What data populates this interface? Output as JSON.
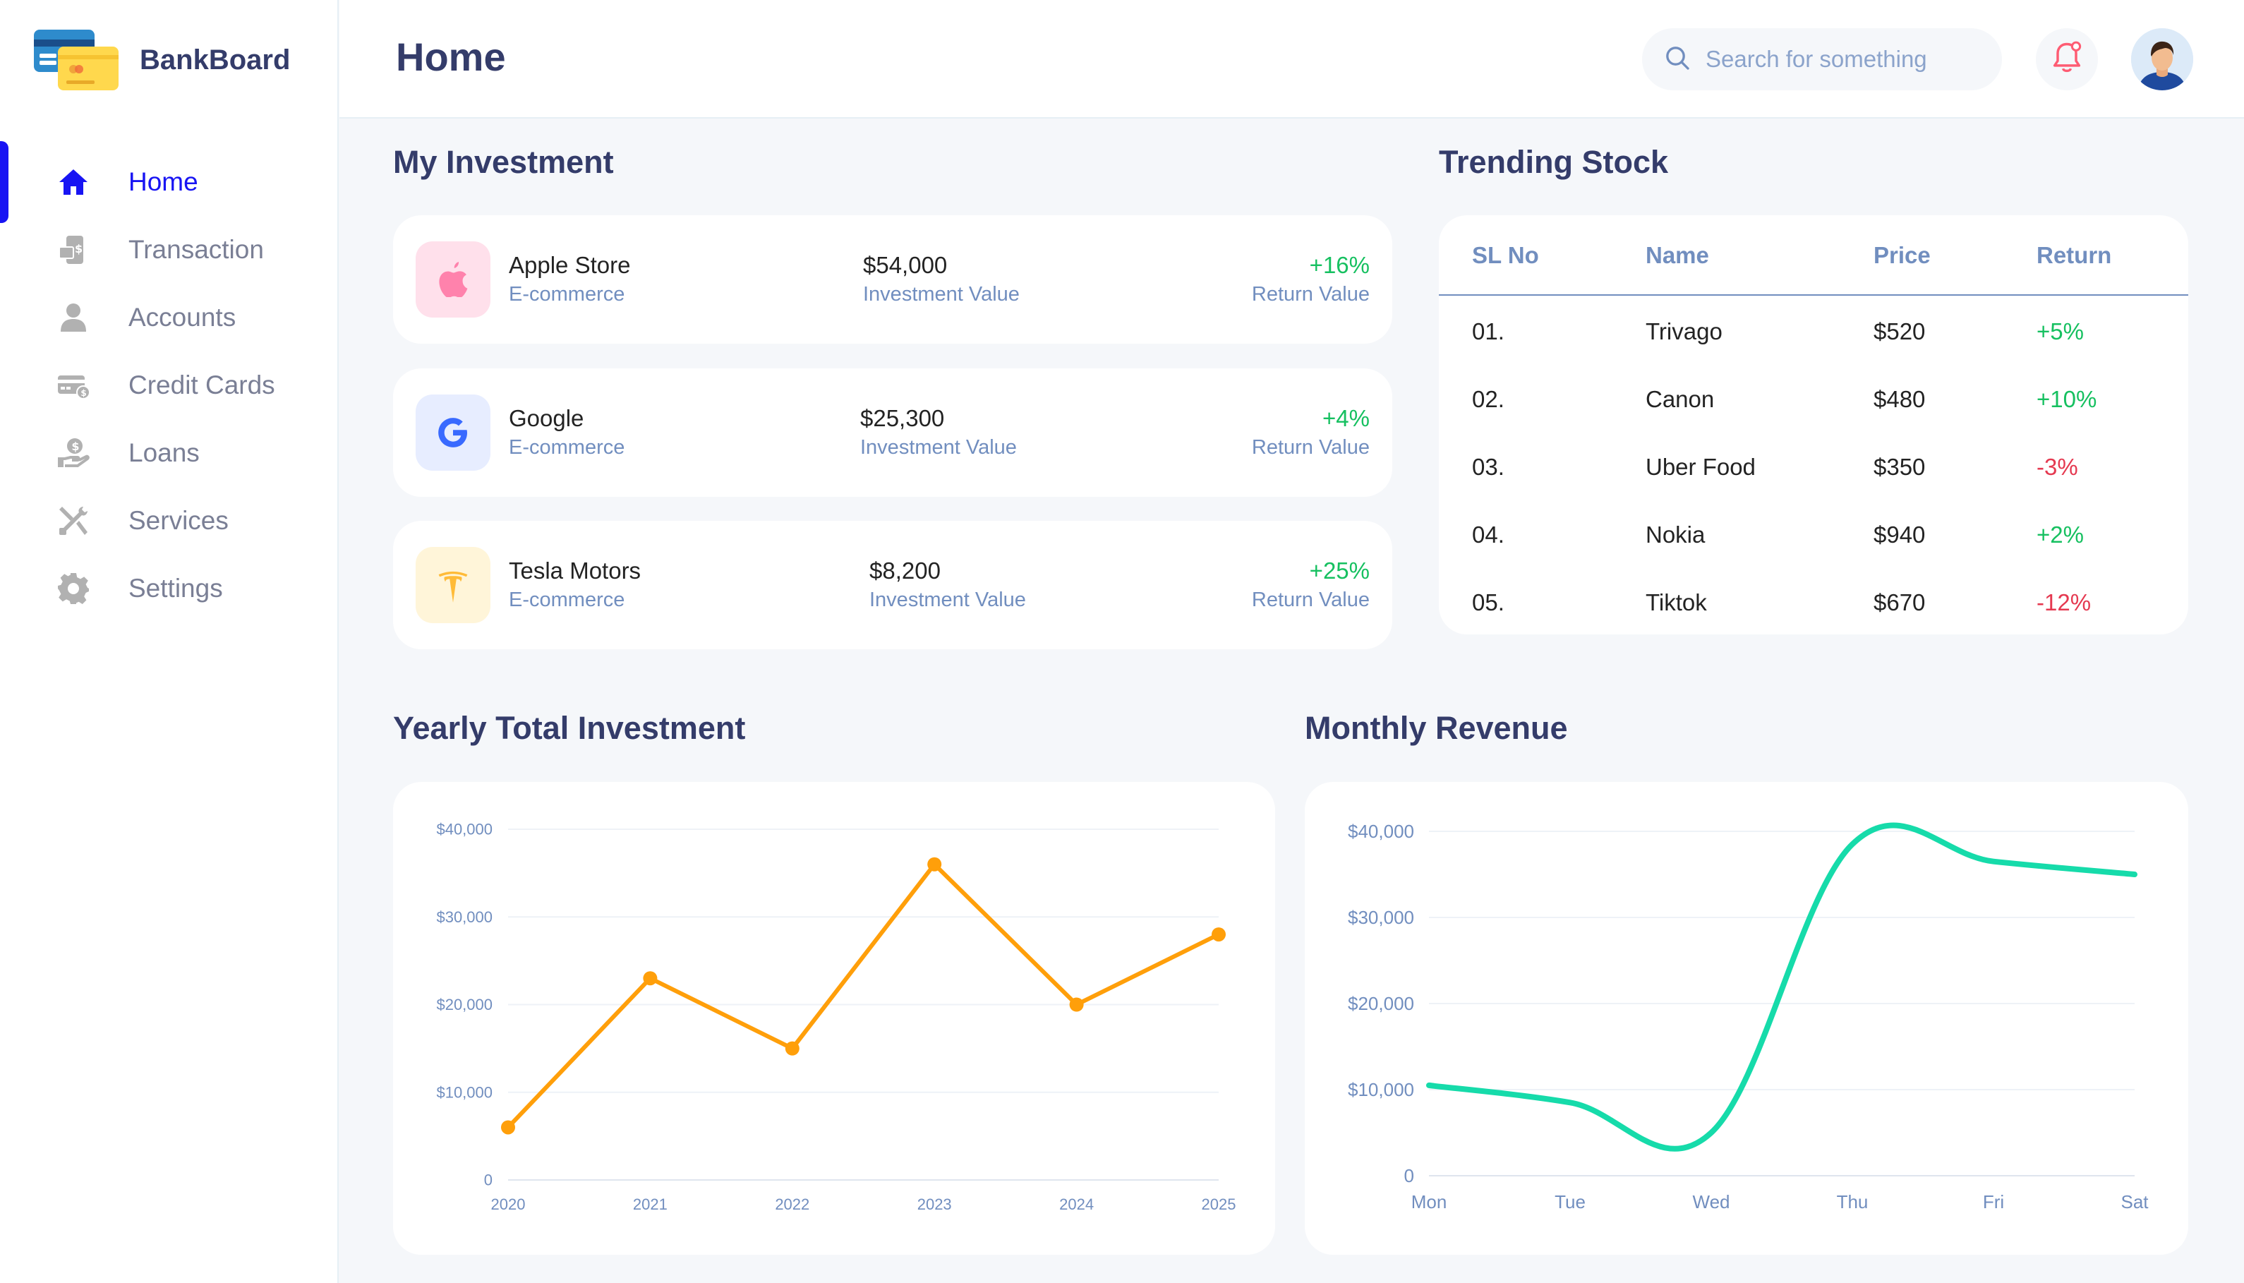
{
  "sidebar": {
    "brand": "BankBoard",
    "items": [
      {
        "label": "Home",
        "icon": "home-icon"
      },
      {
        "label": "Transaction",
        "icon": "transaction-icon"
      },
      {
        "label": "Accounts",
        "icon": "user-icon"
      },
      {
        "label": "Credit Cards",
        "icon": "credit-card-icon"
      },
      {
        "label": "Loans",
        "icon": "loan-icon"
      },
      {
        "label": "Services",
        "icon": "services-icon"
      },
      {
        "label": "Settings",
        "icon": "gear-icon"
      }
    ],
    "active_index": 0
  },
  "header": {
    "title": "Home",
    "search_placeholder": "Search for something"
  },
  "investment": {
    "title": "My Investment",
    "items": [
      {
        "name": "Apple Store",
        "category": "E-commerce",
        "value": "$54,000",
        "value_label": "Investment Value",
        "return": "+16%",
        "return_label": "Return Value",
        "icon": "apple-icon",
        "icon_bg": "#FFE0EB",
        "icon_color": "#FF82AC"
      },
      {
        "name": "Google",
        "category": "E-commerce",
        "value": "$25,300",
        "value_label": "Investment Value",
        "return": "+4%",
        "return_label": "Return Value",
        "icon": "google-icon",
        "icon_bg": "#E7EDFF",
        "icon_color": "#396AFF"
      },
      {
        "name": "Tesla Motors",
        "category": "E-commerce",
        "value": "$8,200",
        "value_label": "Investment Value",
        "return": "+25%",
        "return_label": "Return Value",
        "icon": "tesla-icon",
        "icon_bg": "#FFF5D9",
        "icon_color": "#FFBB38"
      }
    ]
  },
  "trending": {
    "title": "Trending Stock",
    "columns": [
      "SL No",
      "Name",
      "Price",
      "Return"
    ],
    "rows": [
      {
        "sl": "01.",
        "name": "Trivago",
        "price": "$520",
        "return": "+5%",
        "positive": true
      },
      {
        "sl": "02.",
        "name": "Canon",
        "price": "$480",
        "return": "+10%",
        "positive": true
      },
      {
        "sl": "03.",
        "name": "Uber Food",
        "price": "$350",
        "return": "-3%",
        "positive": false
      },
      {
        "sl": "04.",
        "name": "Nokia",
        "price": "$940",
        "return": "+2%",
        "positive": true
      },
      {
        "sl": "05.",
        "name": "Tiktok",
        "price": "$670",
        "return": "-12%",
        "positive": false
      }
    ]
  },
  "colors": {
    "accent": "#1814F3",
    "yearly_line": "#FF9F0A",
    "monthly_line": "#16DBAA",
    "positive": "#16C060",
    "negative": "#E53950"
  },
  "chart_data": [
    {
      "type": "line",
      "title": "Yearly Total Investment",
      "categories": [
        "2020",
        "2021",
        "2022",
        "2023",
        "2024",
        "2025"
      ],
      "values": [
        6000,
        23000,
        15000,
        36000,
        20000,
        28000
      ],
      "ylim": [
        0,
        40000
      ],
      "yticks": [
        "0",
        "$10,000",
        "$20,000",
        "$30,000",
        "$40,000"
      ],
      "markers": true
    },
    {
      "type": "line",
      "title": "Monthly Revenue",
      "categories": [
        "Mon",
        "Tue",
        "Wed",
        "Thu",
        "Fri",
        "Sat"
      ],
      "values": [
        10500,
        8500,
        5000,
        38500,
        36500,
        35000
      ],
      "ylim": [
        0,
        40000
      ],
      "yticks": [
        "0",
        "$10,000",
        "$20,000",
        "$30,000",
        "$40,000"
      ],
      "smooth": true
    }
  ]
}
